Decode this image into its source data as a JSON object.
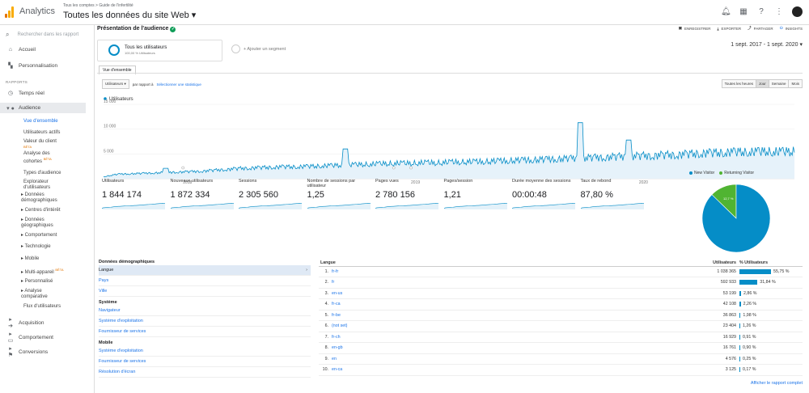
{
  "topbar": {
    "app_name": "Analytics",
    "breadcrumb": [
      "Tous les comptes",
      "Guide de l'infertilité"
    ],
    "property_view": "Toutes les données du site Web",
    "icons": [
      "bell-icon",
      "apps-icon",
      "help-icon",
      "more-icon",
      "avatar"
    ]
  },
  "sidebar": {
    "search_placeholder": "Rechercher dans les rapport",
    "items_top": [
      {
        "label": "Accueil",
        "icon": "home-icon"
      },
      {
        "label": "Personnalisation",
        "icon": "dashboard-icon"
      }
    ],
    "section_label": "RAPPORTS",
    "items_reports": [
      {
        "label": "Temps réel",
        "icon": "clock-icon"
      },
      {
        "label": "Audience",
        "icon": "person-icon"
      }
    ],
    "audience_sub": [
      {
        "label": "Vue d'ensemble",
        "active": true
      },
      {
        "label": "Utilisateurs actifs"
      },
      {
        "label": "Valeur du client",
        "beta": "BÊTA"
      },
      {
        "label": "Analyse des cohortes",
        "beta": "BÊTA"
      },
      {
        "label": "Types d'audience"
      },
      {
        "label": "Explorateur d'utilisateurs"
      },
      {
        "label": "▸ Données démographiques"
      },
      {
        "label": "▸ Centres d'intérêt"
      },
      {
        "label": "▸ Données géographiques"
      },
      {
        "label": "▸ Comportement"
      },
      {
        "label": "▸ Technologie"
      },
      {
        "label": "▸ Mobile"
      },
      {
        "label": "▸ Multi-appareil",
        "beta": "BÊTA"
      },
      {
        "label": "▸ Personnalisé"
      },
      {
        "label": "▸ Analyse comparative"
      },
      {
        "label": "Flux d'utilisateurs"
      }
    ],
    "items_bottom": [
      {
        "label": "Acquisition",
        "icon": "acquisition-icon"
      },
      {
        "label": "Comportement",
        "icon": "behavior-icon"
      },
      {
        "label": "Conversions",
        "icon": "flag-icon"
      }
    ]
  },
  "header": {
    "title": "Présentation de l'audience",
    "actions": [
      "ENREGISTRER",
      "EXPORTER",
      "PARTAGER",
      "INSIGHTS"
    ]
  },
  "segment": {
    "name": "Tous les utilisateurs",
    "share": "100,00 % Utilisateurs",
    "add_label": "+ Ajouter un segment"
  },
  "date_range": "1 sept. 2017 - 1 sept. 2020",
  "tab_label": "Vue d'ensemble",
  "metric_select": "Utilisateurs",
  "versus_label": "par rapport à",
  "select_metric_link": "Sélectionner une statistique",
  "granularity": [
    {
      "label": "Toutes les heures"
    },
    {
      "label": "Jour",
      "selected": true
    },
    {
      "label": "Semaine"
    },
    {
      "label": "Mois"
    }
  ],
  "chart_data": {
    "type": "line",
    "series_name": "Utilisateurs",
    "y_ticks": [
      "15 000",
      "10 000",
      "5 000"
    ],
    "ylim": [
      0,
      15000
    ],
    "x_ticks": [
      "2018",
      "2019",
      "2020"
    ],
    "color": "#058dc7",
    "x": [
      0,
      2,
      4,
      6,
      8,
      10,
      12,
      14,
      16,
      18,
      20,
      22,
      24,
      26,
      28,
      30,
      32,
      34,
      36,
      38,
      40,
      42,
      44,
      46,
      48,
      50,
      52,
      54,
      56,
      58,
      60,
      62,
      64,
      66,
      68,
      70,
      72,
      74,
      76,
      78,
      80,
      82,
      84,
      86,
      88,
      90,
      92,
      94,
      96,
      98,
      100
    ],
    "y": [
      400,
      900,
      1000,
      1100,
      1200,
      1300,
      1400,
      1500,
      1700,
      1900,
      2100,
      2200,
      2300,
      2400,
      2400,
      2500,
      2600,
      2700,
      2800,
      2900,
      3000,
      3100,
      3100,
      3200,
      3200,
      3300,
      3400,
      3400,
      3500,
      3600,
      3700,
      3800,
      3900,
      4000,
      4100,
      4200,
      4300,
      4400,
      4500,
      4600,
      4700,
      4800,
      4900,
      5100,
      5200,
      5300,
      5400,
      5400,
      5500,
      5400,
      5500
    ],
    "spikes": [
      {
        "x": 9,
        "y": 2100
      },
      {
        "x": 35,
        "y": 6000
      },
      {
        "x": 69,
        "y": 11300
      },
      {
        "x": 76,
        "y": 7800
      }
    ]
  },
  "metrics": [
    {
      "label": "Utilisateurs",
      "value": "1 844 174"
    },
    {
      "label": "Nouveaux utilisateurs",
      "value": "1 872 334"
    },
    {
      "label": "Sessions",
      "value": "2 305 560"
    },
    {
      "label": "Nombre de sessions par utilisateur",
      "value": "1,25"
    },
    {
      "label": "Pages vues",
      "value": "2 780 156"
    },
    {
      "label": "Pages/session",
      "value": "1,21"
    },
    {
      "label": "Durée moyenne des sessions",
      "value": "00:00:48"
    },
    {
      "label": "Taux de rebond",
      "value": "87,80 %"
    }
  ],
  "pie": {
    "legend": [
      {
        "label": "New Visitor",
        "color": "#058dc7",
        "value": 87.3
      },
      {
        "label": "Returning Visitor",
        "color": "#50b432",
        "value": 12.7
      }
    ],
    "labels": [
      "87,3 %",
      "12,7 %"
    ]
  },
  "dimensions": {
    "groups": [
      {
        "heading": "Données démographiques",
        "items": [
          {
            "label": "Langue",
            "active": true
          },
          {
            "label": "Pays"
          },
          {
            "label": "Ville"
          }
        ]
      },
      {
        "heading": "Système",
        "items": [
          {
            "label": "Navigateur"
          },
          {
            "label": "Système d'exploitation"
          },
          {
            "label": "Fournisseur de services"
          }
        ]
      },
      {
        "heading": "Mobile",
        "items": [
          {
            "label": "Système d'exploitation"
          },
          {
            "label": "Fournisseur de services"
          },
          {
            "label": "Résolution d'écran"
          }
        ]
      }
    ]
  },
  "table": {
    "headers": [
      "Langue",
      "Utilisateurs",
      "% Utilisateurs"
    ],
    "rows": [
      {
        "n": "1.",
        "code": "fr-fr",
        "users": "1 038 365",
        "pct": "55,75 %",
        "frac": 0.5575
      },
      {
        "n": "2.",
        "code": "fr",
        "users": "592 933",
        "pct": "31,84 %",
        "frac": 0.3184
      },
      {
        "n": "3.",
        "code": "en-us",
        "users": "53 199",
        "pct": "2,86 %",
        "frac": 0.0286
      },
      {
        "n": "4.",
        "code": "fr-ca",
        "users": "42 108",
        "pct": "2,26 %",
        "frac": 0.0226
      },
      {
        "n": "5.",
        "code": "fr-be",
        "users": "36 863",
        "pct": "1,98 %",
        "frac": 0.0198
      },
      {
        "n": "6.",
        "code": "(not set)",
        "users": "23 404",
        "pct": "1,26 %",
        "frac": 0.0126
      },
      {
        "n": "7.",
        "code": "fr-ch",
        "users": "16 929",
        "pct": "0,91 %",
        "frac": 0.0091
      },
      {
        "n": "8.",
        "code": "en-gb",
        "users": "16 761",
        "pct": "0,90 %",
        "frac": 0.009
      },
      {
        "n": "9.",
        "code": "en",
        "users": "4 576",
        "pct": "0,25 %",
        "frac": 0.0025
      },
      {
        "n": "10.",
        "code": "en-ca",
        "users": "3 125",
        "pct": "0,17 %",
        "frac": 0.0017
      }
    ],
    "full_report_link": "Afficher le rapport complet"
  }
}
